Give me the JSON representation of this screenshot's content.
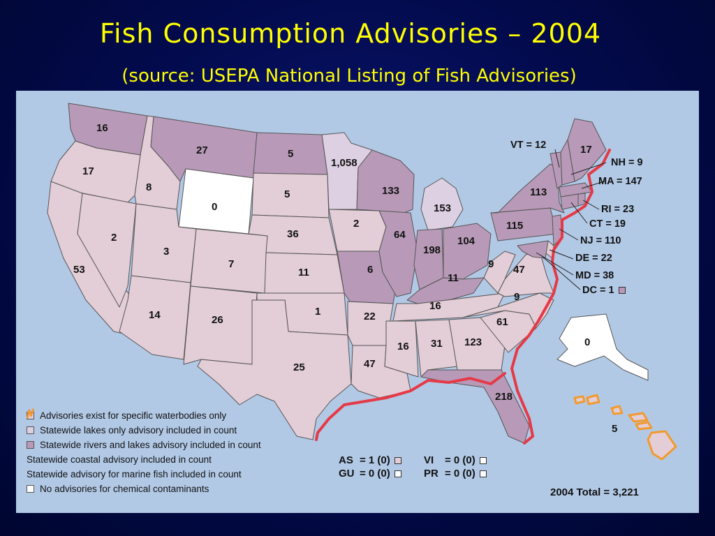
{
  "slide": {
    "title": "Fish Consumption Advisories – 2004",
    "subtitle": "(source: USEPA National Listing of Fish Advisories)"
  },
  "colors": {
    "specific_waterbodies": "#e3cdd6",
    "statewide_lakes": "#ddd0e2",
    "statewide_rivers_lakes": "#b89ab8",
    "coastal": "#e63946",
    "marine": "#f29a2e",
    "none": "#ffffff",
    "ocean": "#b2c9e6"
  },
  "legend": [
    {
      "label": "Advisories exist for specific waterbodies only",
      "swatch": "specific_waterbodies"
    },
    {
      "label": "Statewide lakes only advisory included in count",
      "swatch": "statewide_lakes"
    },
    {
      "label": "Statewide rivers and lakes advisory included in count",
      "swatch": "statewide_rivers_lakes"
    },
    {
      "label": "Statewide coastal advisory included in count",
      "swatch": "coastal"
    },
    {
      "label": "Statewide advisory for marine fish included in count",
      "swatch": "marine"
    },
    {
      "label": "No advisories for chemical contaminants",
      "swatch": "none"
    }
  ],
  "state_values": {
    "WA": "16",
    "OR": "17",
    "CA": "53",
    "NV": "2",
    "ID": "8",
    "MT": "27",
    "WY": "0",
    "UT": "3",
    "AZ": "14",
    "CO": "7",
    "NM": "26",
    "ND": "5",
    "SD": "5",
    "NE": "36",
    "KS": "11",
    "OK": "1",
    "TX": "25",
    "MN": "1,058",
    "IA": "2",
    "MO": "6",
    "AR": "22",
    "LA": "47",
    "WI": "133",
    "IL": "64",
    "MI": "153",
    "IN": "198",
    "OH": "104",
    "KY": "11",
    "TN": "16",
    "MS": "16",
    "AL": "31",
    "GA": "123",
    "FL": "218",
    "SC": "61",
    "NC": "9",
    "VA": "47",
    "WV": "9",
    "PA": "115",
    "NY": "113",
    "ME": "17",
    "AK": "0",
    "HI": "5"
  },
  "callouts": {
    "VT": "VT = 12",
    "NH": "NH = 9",
    "MA": "MA = 147",
    "RI": "RI = 23",
    "CT": "CT = 19",
    "NJ": "NJ = 110",
    "DE": "DE = 22",
    "MD": "MD = 38",
    "DC": "DC = 1"
  },
  "territories": [
    {
      "label": "AS",
      "value": "= 1 (0)",
      "swatch": "specific_waterbodies"
    },
    {
      "label": "VI",
      "value": "= 0 (0)",
      "swatch": "none"
    },
    {
      "label": "GU",
      "value": "= 0 (0)",
      "swatch": "none"
    },
    {
      "label": "PR",
      "value": "= 0 (0)",
      "swatch": "none"
    }
  ],
  "total": "2004 Total = 3,221"
}
